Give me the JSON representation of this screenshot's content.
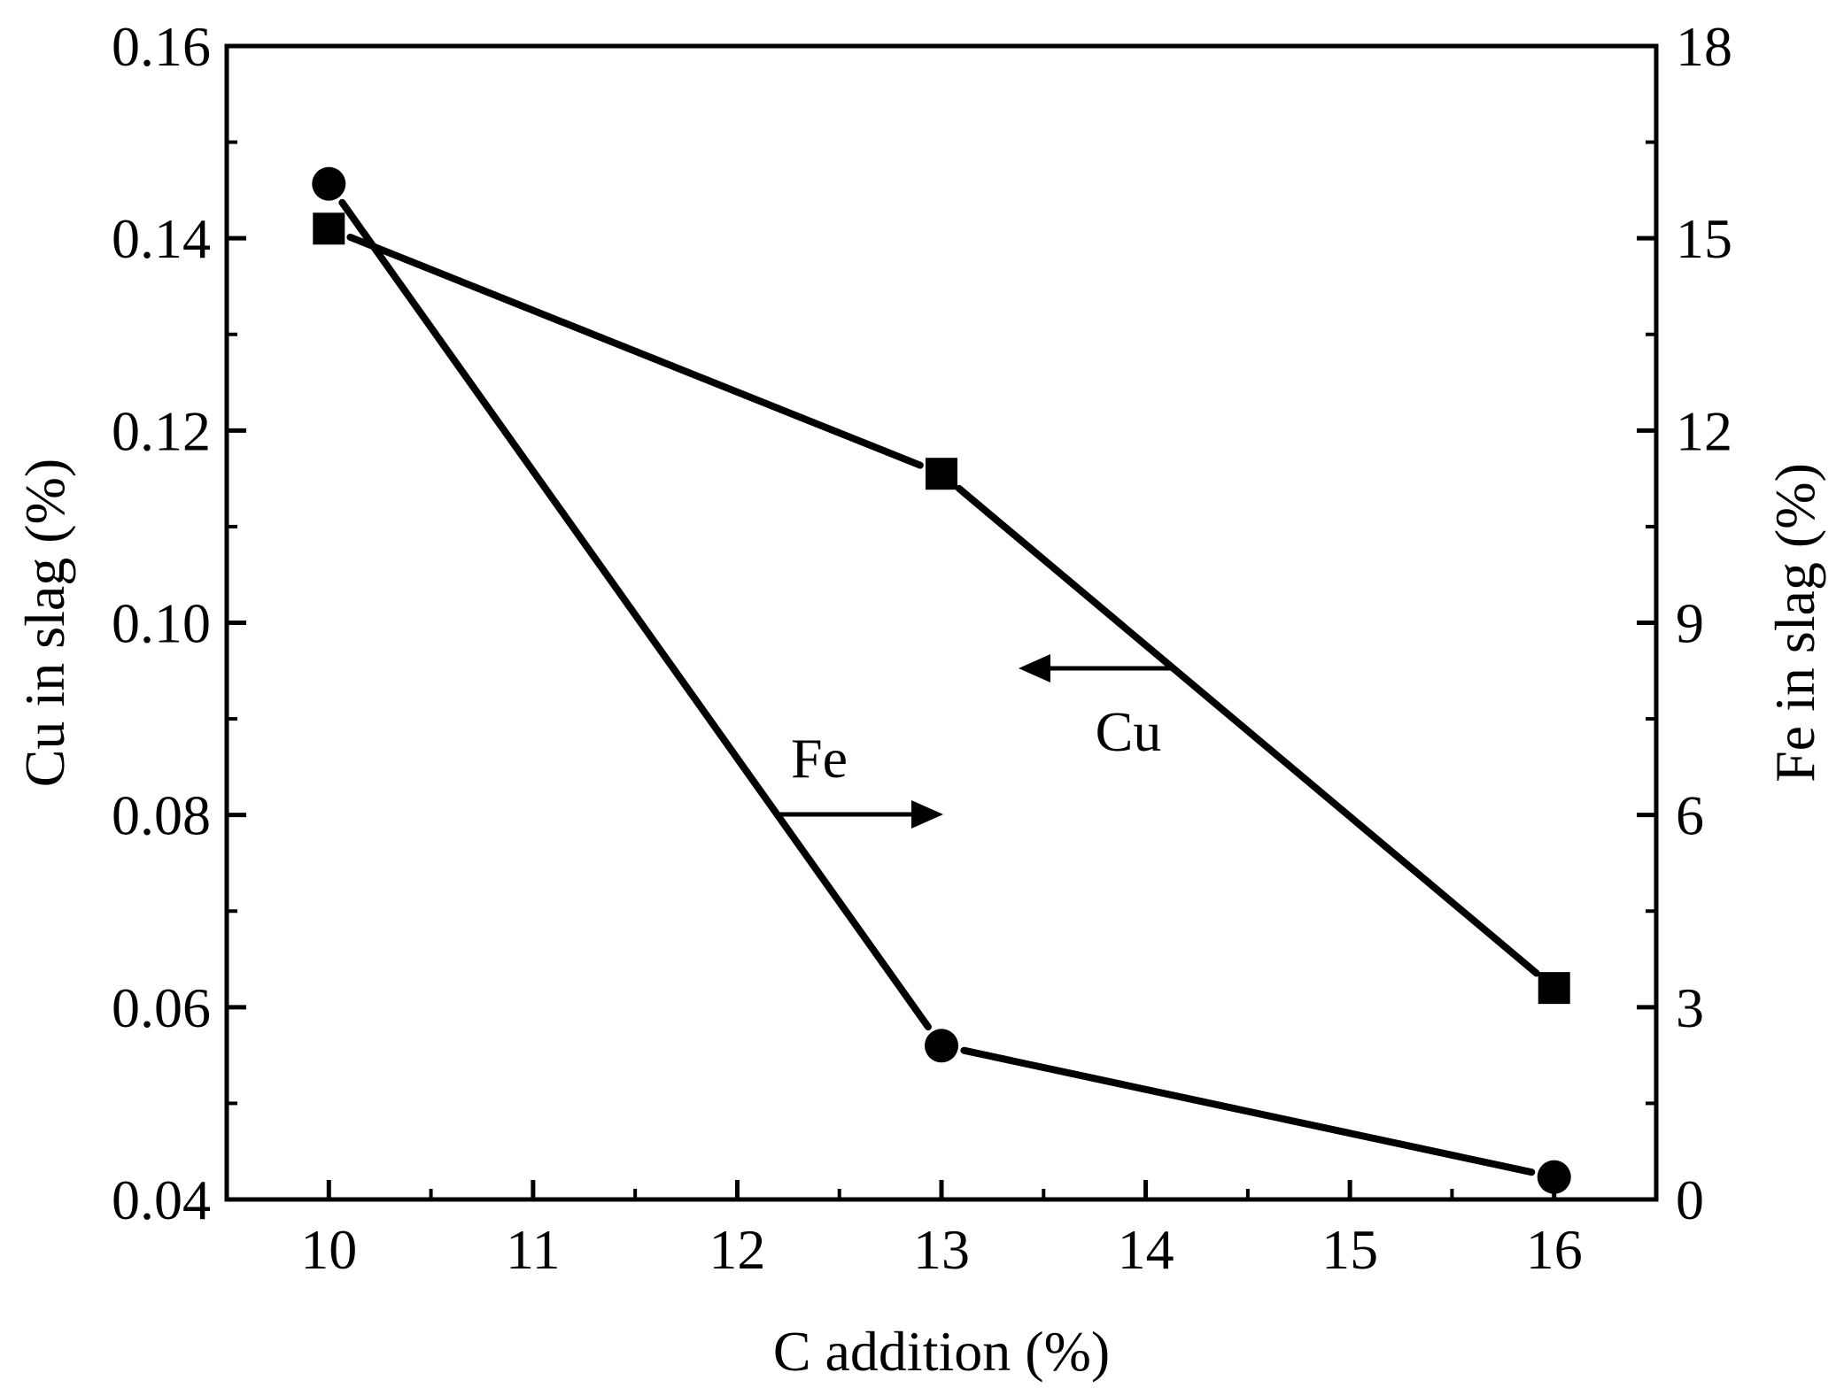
{
  "chart_data": {
    "type": "line",
    "xlabel": "C addition (%)",
    "ylabel_left": "Cu in slag (%)",
    "ylabel_right": "Fe in slag (%)",
    "x_ticks": [
      "10",
      "11",
      "12",
      "13",
      "14",
      "15",
      "16"
    ],
    "y_left_ticks": [
      "0.04",
      "0.06",
      "0.08",
      "0.10",
      "0.12",
      "0.14",
      "0.16"
    ],
    "y_right_ticks": [
      "0",
      "3",
      "6",
      "9",
      "12",
      "15",
      "18"
    ],
    "xlim": [
      9.5,
      16.5
    ],
    "ylim_left": [
      0.04,
      0.16
    ],
    "ylim_right": [
      0,
      18
    ],
    "grid": false,
    "series": [
      {
        "name": "Cu",
        "axis": "left",
        "marker": "square",
        "x": [
          10,
          13,
          16
        ],
        "values": [
          0.141,
          0.1155,
          0.062
        ]
      },
      {
        "name": "Fe",
        "axis": "right",
        "marker": "circle",
        "x": [
          10,
          13,
          16
        ],
        "values": [
          15.85,
          2.4,
          0.35
        ]
      }
    ],
    "annotations": [
      {
        "text": "Cu",
        "arrow": "left",
        "points_to": "left axis"
      },
      {
        "text": "Fe",
        "arrow": "right",
        "points_to": "right axis"
      }
    ]
  }
}
